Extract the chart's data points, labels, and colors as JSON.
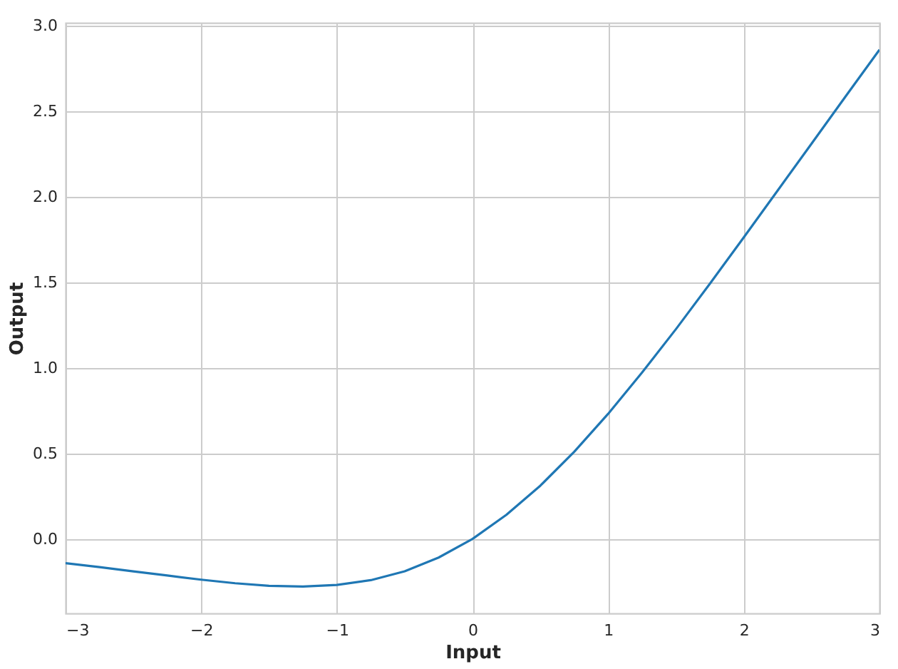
{
  "chart_data": {
    "type": "line",
    "xlabel": "Input",
    "ylabel": "Output",
    "x": [
      -3,
      -2.75,
      -2.5,
      -2.25,
      -2,
      -1.75,
      -1.5,
      -1.25,
      -1,
      -0.75,
      -0.5,
      -0.25,
      0,
      0.25,
      0.5,
      0.75,
      1,
      1.25,
      1.5,
      1.75,
      2,
      2.25,
      2.5,
      2.75,
      3
    ],
    "series": [
      {
        "color": "#1f77b4",
        "values": [
          -0.142,
          -0.165,
          -0.19,
          -0.214,
          -0.238,
          -0.259,
          -0.274,
          -0.278,
          -0.269,
          -0.241,
          -0.189,
          -0.109,
          0,
          0.141,
          0.311,
          0.509,
          0.731,
          0.972,
          1.226,
          1.491,
          1.762,
          2.036,
          2.31,
          2.585,
          2.858
        ]
      }
    ],
    "xlim": [
      -3,
      3
    ],
    "ylim": [
      -0.435,
      3.015
    ],
    "xticks": [
      {
        "value": -3,
        "label": "−3"
      },
      {
        "value": -2,
        "label": "−2"
      },
      {
        "value": -1,
        "label": "−1"
      },
      0,
      1,
      2,
      3
    ],
    "yticks": [
      {
        "value": 0,
        "label": "0.0"
      },
      {
        "value": 0.5,
        "label": "0.5"
      },
      {
        "value": 1,
        "label": "1.0"
      },
      {
        "value": 1.5,
        "label": "1.5"
      },
      {
        "value": 2,
        "label": "2.0"
      },
      {
        "value": 2.5,
        "label": "2.5"
      },
      {
        "value": 3,
        "label": "3.0"
      }
    ],
    "grid": true,
    "marker": "none",
    "line_style": "solid"
  }
}
